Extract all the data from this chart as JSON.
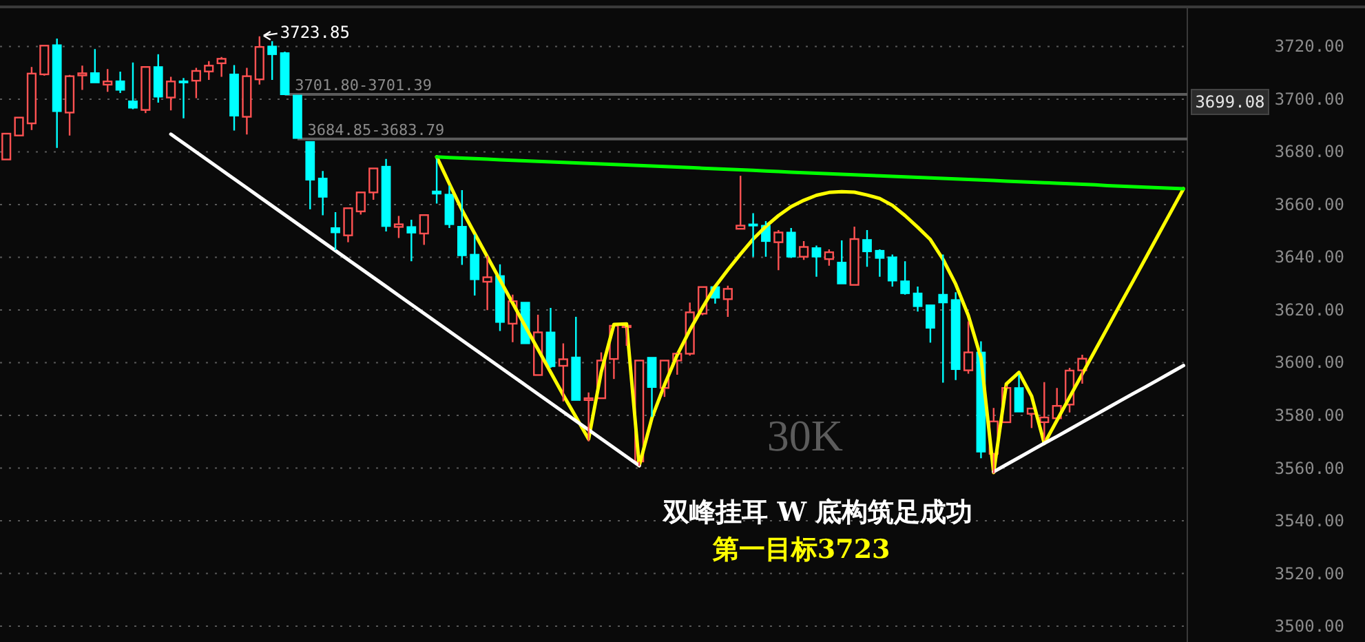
{
  "chart_data": {
    "type": "candlestick",
    "categories": [
      null,
      null,
      null,
      null,
      null,
      null,
      null,
      null,
      null,
      null,
      null,
      null,
      null,
      null,
      null,
      null,
      null,
      null,
      null,
      null,
      null,
      null,
      null,
      null,
      null,
      null,
      null,
      null,
      null,
      null,
      null,
      null,
      null,
      null,
      null,
      null,
      null,
      null,
      null,
      null,
      null,
      null,
      null,
      null,
      null,
      null,
      null,
      null,
      null,
      null,
      null,
      null,
      null,
      null,
      null,
      null,
      null,
      null,
      null,
      null,
      null,
      null,
      null,
      null,
      null,
      null,
      null,
      null,
      null,
      null,
      null,
      null,
      null,
      null,
      null,
      null,
      null,
      null,
      null,
      null,
      null,
      null,
      null,
      null,
      null,
      null,
      null,
      null,
      null,
      null,
      null,
      null,
      null,
      null
    ],
    "ohlc": [
      [
        3677.1,
        3686.9,
        3677.1,
        3686.9
      ],
      [
        3686.2,
        3693.0,
        3686.2,
        3693.0
      ],
      [
        3690.8,
        3712.2,
        3688.3,
        3709.7
      ],
      [
        3709.4,
        3720.3,
        3708.9,
        3720.3
      ],
      [
        3720.5,
        3723.0,
        3681.5,
        3695.4
      ],
      [
        3694.9,
        3709.2,
        3686.2,
        3708.7
      ],
      [
        3709.0,
        3712.7,
        3703.5,
        3709.8
      ],
      [
        3709.9,
        3719.0,
        3706.3,
        3706.3
      ],
      [
        3705.5,
        3711.4,
        3702.8,
        3706.7
      ],
      [
        3706.8,
        3710.4,
        3702.3,
        3703.5
      ],
      [
        3699.2,
        3713.9,
        3696.2,
        3696.7
      ],
      [
        3695.9,
        3712.2,
        3694.7,
        3712.2
      ],
      [
        3712.2,
        3717.0,
        3698.7,
        3700.9
      ],
      [
        3700.6,
        3708.5,
        3695.7,
        3706.7
      ],
      [
        3706.8,
        3708.0,
        3692.7,
        3706.5
      ],
      [
        3707.0,
        3711.9,
        3700.4,
        3710.7
      ],
      [
        3710.5,
        3714.4,
        3707.3,
        3712.7
      ],
      [
        3713.6,
        3716.0,
        3708.5,
        3715.3
      ],
      [
        3709.4,
        3712.9,
        3688.1,
        3693.7
      ],
      [
        3693.3,
        3711.9,
        3686.6,
        3708.7
      ],
      [
        3707.5,
        3723.85,
        3705.5,
        3719.8
      ],
      [
        3720.0,
        3722.0,
        3707.3,
        3717.0
      ],
      [
        3717.5,
        3718.0,
        3701.8,
        3701.8
      ],
      [
        3701.39,
        3701.39,
        3684.85,
        3685.2
      ],
      [
        3683.79,
        3683.79,
        3658.2,
        3669.4
      ],
      [
        3669.9,
        3672.7,
        3655.9,
        3662.9
      ],
      [
        3651.1,
        3657.1,
        3642.7,
        3649.4
      ],
      [
        3648.3,
        3658.6,
        3645.7,
        3658.6
      ],
      [
        3657.4,
        3665.0,
        3656.2,
        3664.6
      ],
      [
        3664.6,
        3673.7,
        3661.8,
        3673.7
      ],
      [
        3674.4,
        3677.3,
        3649.8,
        3651.8
      ],
      [
        3651.5,
        3655.7,
        3647.3,
        3652.5
      ],
      [
        3651.5,
        3654.2,
        3638.5,
        3649.3
      ],
      [
        3649.0,
        3656.0,
        3644.7,
        3656.0
      ],
      [
        3665.0,
        3677.3,
        3660.4,
        3664.1
      ],
      [
        3663.8,
        3667.2,
        3651.1,
        3652.5
      ],
      [
        3651.6,
        3665.5,
        3637.1,
        3640.7
      ],
      [
        3641.0,
        3648.6,
        3625.5,
        3631.6
      ],
      [
        3630.7,
        3640.5,
        3619.9,
        3632.4
      ],
      [
        3632.9,
        3637.3,
        3612.0,
        3615.4
      ],
      [
        3614.8,
        3625.8,
        3607.8,
        3623.3
      ],
      [
        3622.8,
        3622.8,
        3607.3,
        3607.3
      ],
      [
        3595.3,
        3618.2,
        3595.3,
        3611.5
      ],
      [
        3611.5,
        3620.8,
        3598.0,
        3598.6
      ],
      [
        3598.8,
        3607.3,
        3585.3,
        3601.3
      ],
      [
        3602.0,
        3617.4,
        3585.5,
        3585.8
      ],
      [
        3585.8,
        3588.7,
        3570.1,
        3586.5
      ],
      [
        3586.5,
        3603.9,
        3586.5,
        3600.8
      ],
      [
        3601.4,
        3614.3,
        3593.8,
        3614.0
      ],
      [
        3613.5,
        3614.0,
        3606.4,
        3614.0
      ],
      [
        3562.5,
        3600.8,
        3560.8,
        3600.8
      ],
      [
        3601.9,
        3601.9,
        3579.4,
        3590.7
      ],
      [
        3590.4,
        3600.8,
        3587.0,
        3600.8
      ],
      [
        3600.8,
        3603.9,
        3595.4,
        3603.4
      ],
      [
        3603.4,
        3622.8,
        3602.7,
        3619.1
      ],
      [
        3618.6,
        3628.7,
        3618.0,
        3628.7
      ],
      [
        3628.7,
        3628.7,
        3622.4,
        3624.6
      ],
      [
        3624.1,
        3629.2,
        3617.4,
        3628.0
      ],
      [
        3650.8,
        3670.9,
        3650.8,
        3652.0
      ],
      [
        3652.5,
        3656.7,
        3640.2,
        3652.2
      ],
      [
        3652.0,
        3653.7,
        3640.2,
        3646.1
      ],
      [
        3645.7,
        3650.3,
        3635.1,
        3649.4
      ],
      [
        3649.4,
        3651.1,
        3639.7,
        3640.2
      ],
      [
        3640.2,
        3646.1,
        3639.0,
        3643.9
      ],
      [
        3643.5,
        3644.4,
        3632.6,
        3640.2
      ],
      [
        3639.3,
        3643.0,
        3636.8,
        3641.9
      ],
      [
        3638.0,
        3646.4,
        3630.0,
        3630.0
      ],
      [
        3629.5,
        3651.6,
        3629.5,
        3646.9
      ],
      [
        3646.6,
        3650.3,
        3636.4,
        3642.2
      ],
      [
        3642.5,
        3643.0,
        3632.6,
        3639.7
      ],
      [
        3640.0,
        3641.0,
        3628.9,
        3631.1
      ],
      [
        3630.9,
        3638.5,
        3625.8,
        3626.3
      ],
      [
        3626.3,
        3628.9,
        3619.4,
        3621.4
      ],
      [
        3621.8,
        3621.8,
        3607.6,
        3613.2
      ],
      [
        3625.8,
        3641.0,
        3592.4,
        3622.8
      ],
      [
        3623.8,
        3626.7,
        3593.4,
        3597.5
      ],
      [
        3597.1,
        3615.7,
        3595.8,
        3603.9
      ],
      [
        3603.9,
        3608.1,
        3563.7,
        3566.2
      ],
      [
        3565.4,
        3582.8,
        3558.0,
        3577.7
      ],
      [
        3577.4,
        3591.2,
        3577.4,
        3590.4
      ],
      [
        3590.4,
        3595.4,
        3581.4,
        3581.4
      ],
      [
        3580.6,
        3582.6,
        3575.2,
        3582.6
      ],
      [
        3577.4,
        3592.6,
        3570.5,
        3579.2
      ],
      [
        3578.9,
        3590.4,
        3578.9,
        3583.6
      ],
      [
        3584.1,
        3598.0,
        3581.1,
        3597.0
      ],
      [
        3597.1,
        3603.0,
        3592.0,
        3601.5
      ],
      null,
      null,
      null,
      null,
      null,
      null,
      null,
      null
    ],
    "series": [
      {
        "type": "line",
        "color": "#ffff00",
        "values": [
          null,
          null,
          null,
          null,
          null,
          null,
          null,
          null,
          null,
          null,
          null,
          null,
          null,
          null,
          null,
          null,
          null,
          null,
          null,
          null,
          null,
          null,
          null,
          null,
          null,
          null,
          null,
          null,
          null,
          null,
          null,
          null,
          null,
          null,
          3678.1,
          3667.9,
          3657.9,
          3649.0,
          3640.2,
          3631.4,
          3622.6,
          3613.8,
          3605.1,
          3596.4,
          3587.7,
          3579.4,
          3571.0,
          3596.5,
          3614.5,
          3614.7,
          3560.9,
          3579.0,
          3591.6,
          3602.9,
          3612.4,
          3620.9,
          3628.9,
          3635.2,
          3641.2,
          3646.9,
          3651.7,
          3655.8,
          3659.2,
          3661.6,
          3663.5,
          3664.6,
          3664.9,
          3664.7,
          3663.6,
          3662.3,
          3659.7,
          3655.8,
          3651.4,
          3646.7,
          3639.2,
          3629.8,
          3617.9,
          3601.8,
          3558.3,
          3591.9,
          3596.3,
          3587.3,
          3569.3,
          3578.1,
          3586.9,
          3595.7,
          3604.5,
          3613.3,
          3622.1,
          3630.8,
          3639.6,
          3648.4,
          3657.2,
          3666.0
        ]
      },
      {
        "type": "line",
        "color": "#00ff00",
        "values": [
          null,
          null,
          null,
          null,
          null,
          null,
          null,
          null,
          null,
          null,
          null,
          null,
          null,
          null,
          null,
          null,
          null,
          null,
          null,
          null,
          null,
          null,
          null,
          null,
          null,
          null,
          null,
          null,
          null,
          null,
          null,
          null,
          null,
          null,
          3678.1,
          3677.8,
          3677.6,
          3677.4,
          3677.2,
          3677.0,
          3676.8,
          3676.6,
          3676.4,
          3676.2,
          3676.0,
          3675.8,
          3675.6,
          3675.4,
          3675.2,
          3675.0,
          3674.8,
          3674.6,
          3674.4,
          3674.2,
          3674.0,
          3673.8,
          3673.6,
          3673.4,
          3673.2,
          3673.0,
          3672.7,
          3672.5,
          3672.3,
          3672.1,
          3671.9,
          3671.7,
          3671.5,
          3671.3,
          3671.1,
          3670.9,
          3670.7,
          3670.5,
          3670.3,
          3670.1,
          3669.9,
          3669.7,
          3669.5,
          3669.3,
          3669.1,
          3668.9,
          3668.7,
          3668.5,
          3668.3,
          3668.1,
          3667.9,
          3667.7,
          3667.5,
          3667.2,
          3667.0,
          3666.8,
          3666.6,
          3666.4,
          3666.2,
          3666.0
        ]
      },
      {
        "type": "line",
        "color": "#ffffff",
        "values": [
          null,
          null,
          null,
          null,
          null,
          null,
          null,
          null,
          null,
          null,
          null,
          null,
          null,
          3686.7,
          3683.3,
          3679.9,
          3676.5,
          3673.1,
          3669.7,
          3666.3,
          3662.9,
          3659.5,
          3656.1,
          3652.7,
          3649.3,
          3645.9,
          3642.5,
          3639.1,
          3635.7,
          3632.3,
          3628.9,
          3625.5,
          3622.1,
          3618.7,
          3615.3,
          3611.9,
          3608.5,
          3605.1,
          3601.7,
          3598.3,
          3594.9,
          3591.5,
          3588.1,
          3584.7,
          3581.3,
          3577.9,
          3574.5,
          3571.1,
          3567.7,
          3564.3,
          3560.9,
          null,
          null,
          null,
          null,
          null,
          null,
          null,
          null,
          null,
          null,
          null,
          null,
          null,
          null,
          null,
          null,
          null,
          null,
          null,
          null,
          null,
          null,
          null,
          null,
          null,
          null,
          null,
          null,
          null,
          null,
          null,
          null,
          null,
          null,
          null,
          null,
          null,
          null,
          null,
          null,
          null,
          null,
          null
        ]
      },
      {
        "type": "line",
        "color": "#ffffff",
        "values": [
          null,
          null,
          null,
          null,
          null,
          null,
          null,
          null,
          null,
          null,
          null,
          null,
          null,
          null,
          null,
          null,
          null,
          null,
          null,
          null,
          null,
          null,
          null,
          null,
          null,
          null,
          null,
          null,
          null,
          null,
          null,
          null,
          null,
          null,
          null,
          null,
          null,
          null,
          null,
          null,
          null,
          null,
          null,
          null,
          null,
          null,
          null,
          null,
          null,
          null,
          null,
          null,
          null,
          null,
          null,
          null,
          null,
          null,
          null,
          null,
          null,
          null,
          null,
          null,
          null,
          null,
          null,
          null,
          null,
          null,
          null,
          null,
          null,
          null,
          null,
          null,
          null,
          null,
          3558.6,
          3561.3,
          3564.0,
          3566.7,
          3569.4,
          3572.0,
          3574.7,
          3577.4,
          3580.1,
          3582.8,
          3585.5,
          3588.2,
          3590.8,
          3593.5,
          3596.2,
          3598.9
        ]
      }
    ],
    "ylim": [
      3494,
      3735
    ],
    "yticks": [
      {
        "value": 3500,
        "label": "3500.00"
      },
      {
        "value": 3520,
        "label": "3520.00"
      },
      {
        "value": 3540,
        "label": "3540.00"
      },
      {
        "value": 3560,
        "label": "3560.00"
      },
      {
        "value": 3580,
        "label": "3580.00"
      },
      {
        "value": 3600,
        "label": "3600.00"
      },
      {
        "value": 3620,
        "label": "3620.00"
      },
      {
        "value": 3640,
        "label": "3640.00"
      },
      {
        "value": 3660,
        "label": "3660.00"
      },
      {
        "value": 3680,
        "label": "3680.00"
      },
      {
        "value": 3700,
        "label": "3700.00"
      },
      {
        "value": 3720,
        "label": "3720.00"
      }
    ],
    "ref_lines": [
      {
        "axis": "y",
        "value": 3701.8,
        "label": "3701.80-3701.39",
        "color": "#5c5c5c"
      },
      {
        "axis": "y",
        "value": 3684.85,
        "label": "3684.85-3683.79",
        "color": "#5c5c5c"
      }
    ],
    "annotations": [
      "30K",
      "双峰挂耳 W 底构筑足成功",
      "第一目标3723",
      "3723.85",
      "3699.08"
    ],
    "grid": "y",
    "tick_labels": "y"
  }
}
